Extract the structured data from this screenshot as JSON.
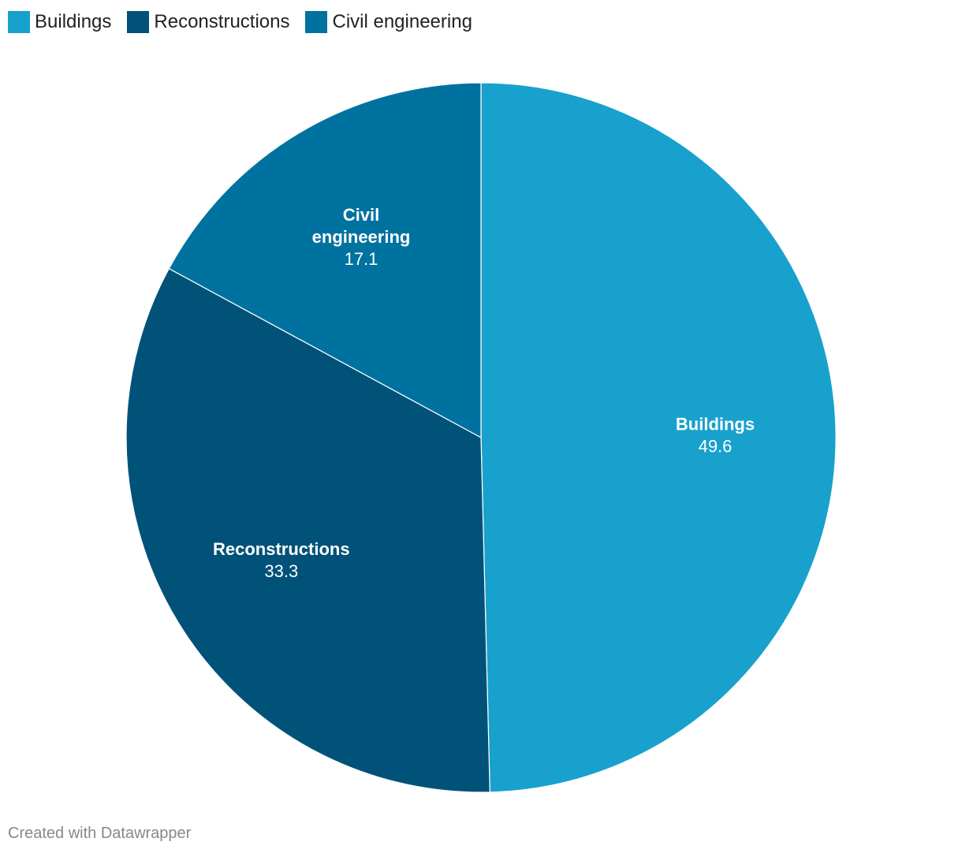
{
  "chart_data": {
    "type": "pie",
    "slices": [
      {
        "label": "Buildings",
        "label_lines": [
          "Buildings"
        ],
        "value": 49.6,
        "value_text": "49.6",
        "color": "#18a1cd"
      },
      {
        "label": "Reconstructions",
        "label_lines": [
          "Reconstructions"
        ],
        "value": 33.3,
        "value_text": "33.3",
        "color": "#005278"
      },
      {
        "label": "Civil engineering",
        "label_lines": [
          "Civil",
          "engineering"
        ],
        "value": 17.1,
        "value_text": "17.1",
        "color": "#00729f"
      }
    ],
    "legend": {
      "placement": "top-left",
      "items": [
        {
          "label": "Buildings",
          "color": "#18a1cd"
        },
        {
          "label": "Reconstructions",
          "color": "#005278"
        },
        {
          "label": "Civil engineering",
          "color": "#00729f"
        }
      ]
    },
    "start_angle": "12 o'clock",
    "direction": "clockwise"
  },
  "footer": {
    "credit": "Created with Datawrapper"
  }
}
